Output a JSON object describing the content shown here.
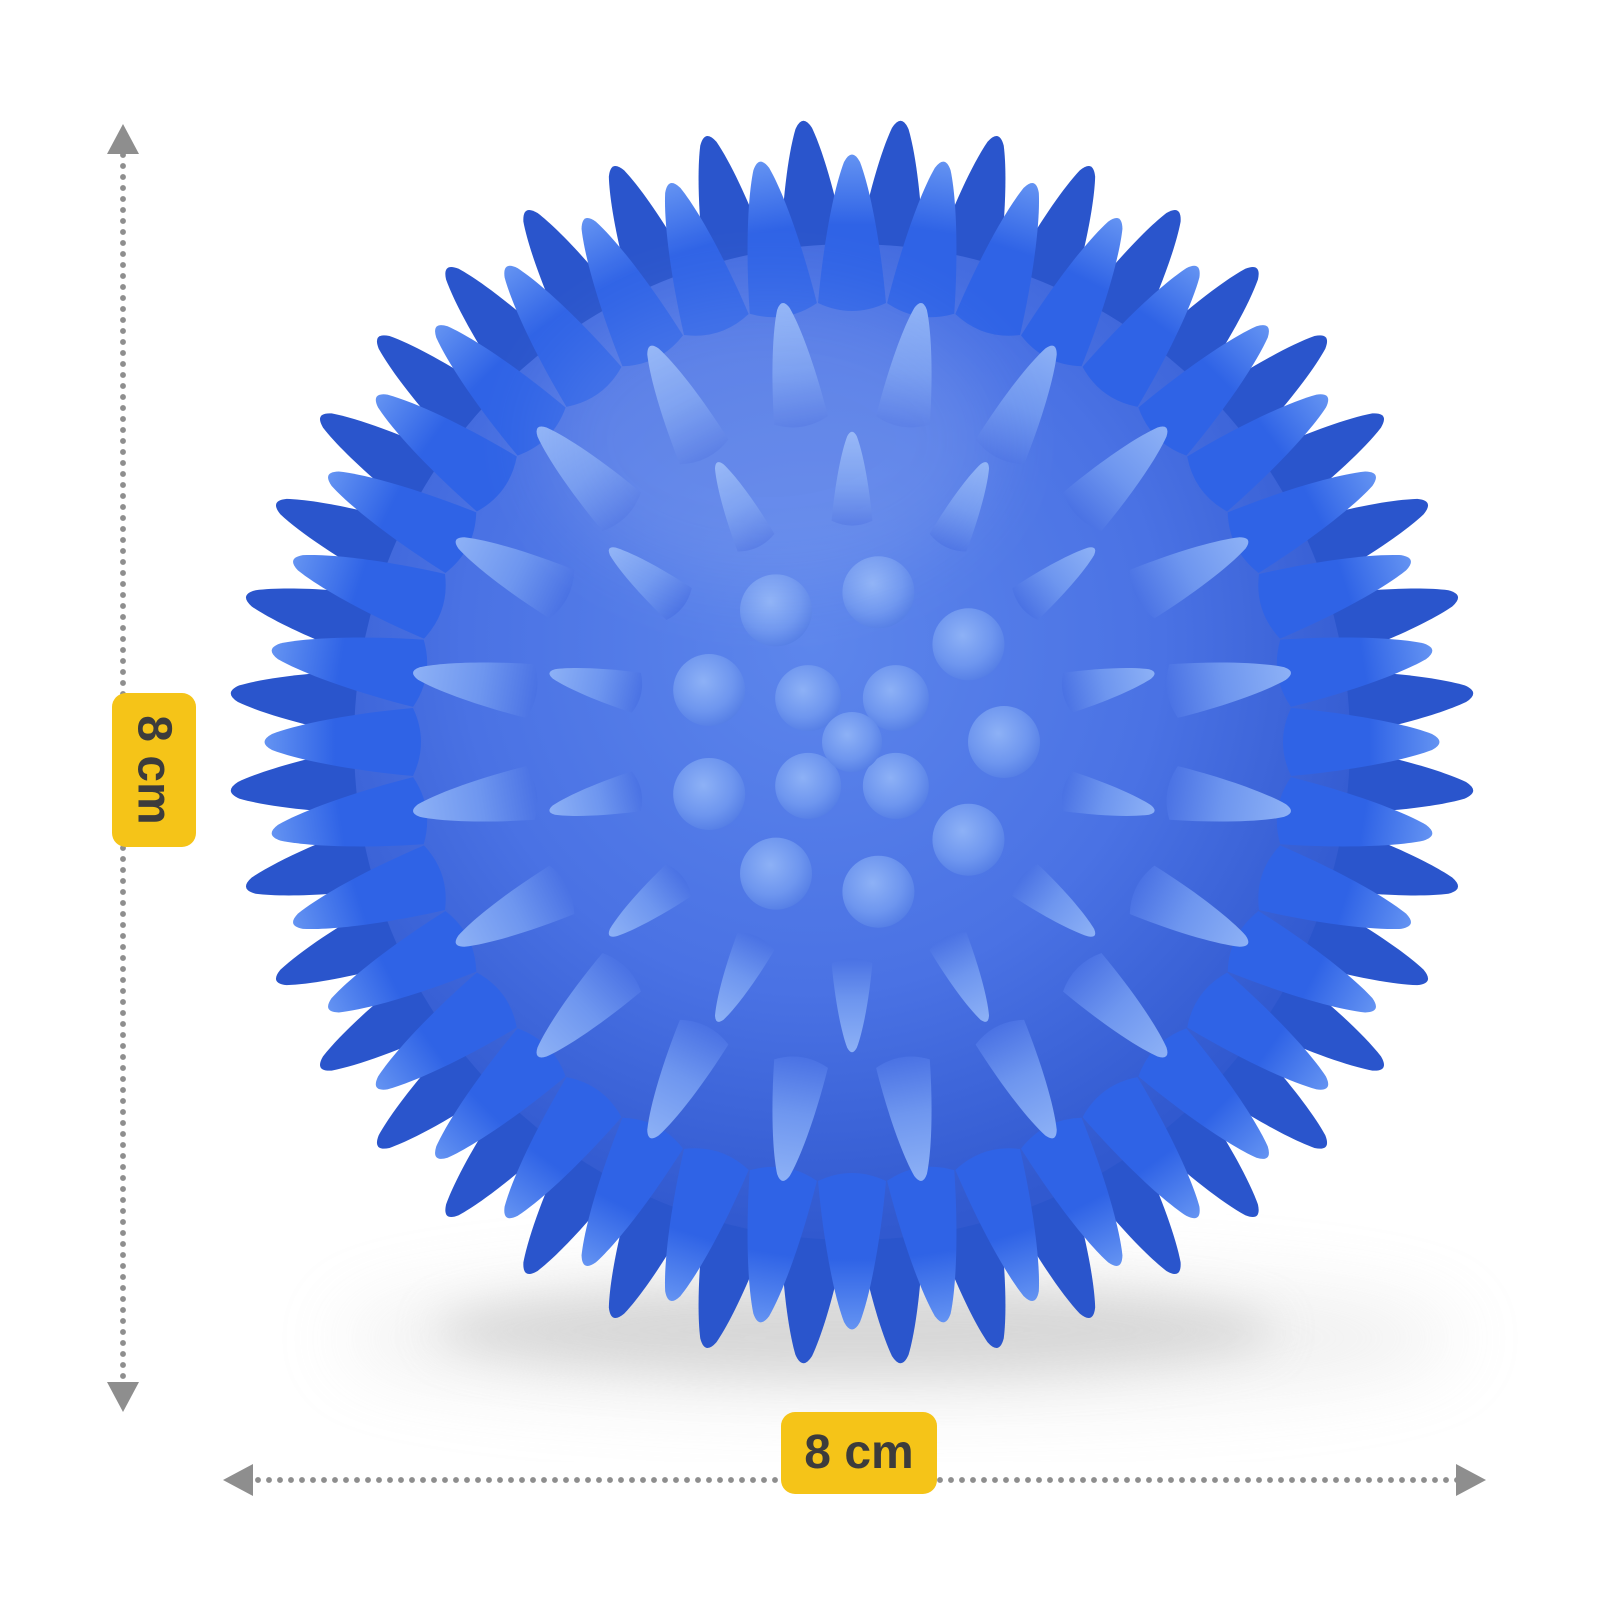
{
  "page": {
    "background_color": "#ffffff"
  },
  "annotations": {
    "arrow_color": "#8E8E8E",
    "badge": {
      "background_color": "#F5C418",
      "text_color": "#3C3C3C"
    },
    "height_label": "8 cm",
    "width_label": "8 cm"
  },
  "product": {
    "description": "blue spiky massage ball",
    "colors": {
      "body_light": "#5D86EC",
      "body": "#4A72E4",
      "body_dark": "#3159CF",
      "spike": "#2F63E6",
      "spike_dark": "#2A55CC",
      "spike_light": "#6493F2",
      "nub_light": "#8DB1F6",
      "nub": "#6E96EF",
      "nub_dark": "#4A74E2",
      "shadow": "#C4C4C4"
    }
  }
}
